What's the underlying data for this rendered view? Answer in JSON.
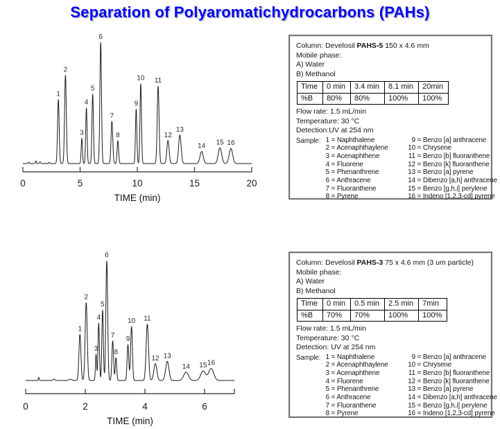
{
  "title": "Separation of Polyaromatichydrocarbons (PAHs)",
  "title_color": "#0404f0",
  "chart_data": [
    {
      "type": "line",
      "title": "Develosil PAHS-5 chromatogram",
      "xlabel": "TIME (min)",
      "ylabel": "",
      "xlim": [
        0,
        20
      ],
      "x_ticks": [
        0,
        5,
        10,
        15,
        20
      ],
      "grid": false,
      "legend": "none",
      "peaks": [
        {
          "label": "1",
          "t": 3.1,
          "h": 0.53,
          "w": 0.07
        },
        {
          "label": "2",
          "t": 3.72,
          "h": 0.73,
          "w": 0.075
        },
        {
          "label": "3",
          "t": 5.15,
          "h": 0.21,
          "w": 0.055
        },
        {
          "label": "4",
          "t": 5.55,
          "h": 0.46,
          "w": 0.06
        },
        {
          "label": "5",
          "t": 6.1,
          "h": 0.575,
          "w": 0.065
        },
        {
          "label": "6",
          "t": 6.8,
          "h": 1.0,
          "w": 0.07
        },
        {
          "label": "7",
          "t": 7.78,
          "h": 0.35,
          "w": 0.075
        },
        {
          "label": "8",
          "t": 8.3,
          "h": 0.19,
          "w": 0.065
        },
        {
          "label": "9",
          "t": 9.9,
          "h": 0.45,
          "w": 0.06
        },
        {
          "label": "10",
          "t": 10.3,
          "h": 0.66,
          "w": 0.065
        },
        {
          "label": "11",
          "t": 11.82,
          "h": 0.64,
          "w": 0.08
        },
        {
          "label": "12",
          "t": 12.68,
          "h": 0.19,
          "w": 0.1
        },
        {
          "label": "13",
          "t": 13.72,
          "h": 0.235,
          "w": 0.11
        },
        {
          "label": "14",
          "t": 15.62,
          "h": 0.1,
          "w": 0.14
        },
        {
          "label": "15",
          "t": 17.22,
          "h": 0.13,
          "w": 0.15
        },
        {
          "label": "16",
          "t": 18.18,
          "h": 0.125,
          "w": 0.15
        }
      ],
      "noise": [
        {
          "t": 0.5,
          "h": 0.012,
          "w": 0.05
        },
        {
          "t": 1.15,
          "h": 0.022,
          "w": 0.04
        },
        {
          "t": 1.5,
          "h": 0.014,
          "w": 0.06
        },
        {
          "t": 2.3,
          "h": 0.01,
          "w": 0.05
        }
      ]
    },
    {
      "type": "line",
      "title": "Develosil PAHS-3 chromatogram",
      "xlabel": "TIME (min)",
      "ylabel": "",
      "xlim": [
        0,
        7
      ],
      "x_ticks": [
        0,
        2,
        4,
        6
      ],
      "grid": false,
      "legend": "none",
      "peaks": [
        {
          "label": "1",
          "t": 1.82,
          "h": 0.385,
          "w": 0.033
        },
        {
          "label": "2",
          "t": 2.03,
          "h": 0.65,
          "w": 0.035
        },
        {
          "label": "3",
          "t": 2.36,
          "h": 0.22,
          "w": 0.02
        },
        {
          "label": "4",
          "t": 2.45,
          "h": 0.48,
          "w": 0.024
        },
        {
          "label": "5",
          "t": 2.58,
          "h": 0.59,
          "w": 0.025
        },
        {
          "label": "6",
          "t": 2.72,
          "h": 1.0,
          "w": 0.03
        },
        {
          "label": "7",
          "t": 2.92,
          "h": 0.33,
          "w": 0.028
        },
        {
          "label": "8",
          "t": 3.03,
          "h": 0.19,
          "w": 0.024
        },
        {
          "label": "9",
          "t": 3.43,
          "h": 0.3,
          "w": 0.028
        },
        {
          "label": "10",
          "t": 3.55,
          "h": 0.45,
          "w": 0.03
        },
        {
          "label": "11",
          "t": 4.08,
          "h": 0.47,
          "w": 0.04
        },
        {
          "label": "12",
          "t": 4.35,
          "h": 0.14,
          "w": 0.05
        },
        {
          "label": "13",
          "t": 4.75,
          "h": 0.16,
          "w": 0.055
        },
        {
          "label": "14",
          "t": 5.38,
          "h": 0.07,
          "w": 0.08
        },
        {
          "label": "15",
          "t": 5.95,
          "h": 0.08,
          "w": 0.08
        },
        {
          "label": "16",
          "t": 6.22,
          "h": 0.1,
          "w": 0.085
        }
      ],
      "noise": [
        {
          "t": 0.44,
          "h": 0.025,
          "w": 0.015
        },
        {
          "t": 0.95,
          "h": 0.012,
          "w": 0.03
        },
        {
          "t": 1.5,
          "h": 0.01,
          "w": 0.05
        }
      ]
    }
  ],
  "info_boxes": [
    {
      "column_line": {
        "prefix": "Column: Develosil ",
        "bold": "PAHS-5",
        "suffix": " 150 x 4.6 mm"
      },
      "mobile_phase": "Mobile phase:",
      "phase_a": "A) Water",
      "phase_b": "B) Methanol",
      "gradient_table": {
        "header": [
          "Time",
          "0 min",
          "3.4 min",
          "8.1 min",
          "20min"
        ],
        "row": [
          "%B",
          "80%",
          "80%",
          "100%",
          "100%"
        ]
      },
      "flow_rate": "Flow rate: 1.5 mL/min",
      "temperature": "Temperature: 30 °C",
      "detection": "Detection:UV at 254 nm",
      "sample_label": "Sample:",
      "samples_left": [
        {
          "n": "1",
          "name": "Naphthalene"
        },
        {
          "n": "2",
          "name": "Acenaphthaylene"
        },
        {
          "n": "3",
          "name": "Acenaphthene"
        },
        {
          "n": "4",
          "name": "Fluorene"
        },
        {
          "n": "5",
          "name": "Phenanthrene"
        },
        {
          "n": "6",
          "name": "Anthracene"
        },
        {
          "n": "7",
          "name": "Fluoranthene"
        },
        {
          "n": "8",
          "name": "Pyrene"
        }
      ],
      "samples_right": [
        {
          "n": "9",
          "name": "Benzo [a] anthracene"
        },
        {
          "n": "10",
          "name": "Chrysene"
        },
        {
          "n": "11",
          "name": "Benzo [b] fluoranthene"
        },
        {
          "n": "12",
          "name": "Benzo [k] fluoranthene"
        },
        {
          "n": "13",
          "name": "Benzo [a] pyrene"
        },
        {
          "n": "14",
          "name": "Dibenzo [a,h] anthracene"
        },
        {
          "n": "15",
          "name": "Benzo [g,h,i] perylene"
        },
        {
          "n": "16",
          "name": "Indeno [1,2,3-cd] pyrene"
        }
      ]
    },
    {
      "column_line": {
        "prefix": "Column: Develosil ",
        "bold": "PAHS-3",
        "suffix": " 75 x 4.6 mm (3 um particle)"
      },
      "mobile_phase": "Mobile phase:",
      "phase_a": "A) Water",
      "phase_b": "B) Methanol",
      "gradient_table": {
        "header": [
          "Time",
          "0 min",
          "0.5 min",
          "2.5 min",
          "7min"
        ],
        "row": [
          "%B",
          "70%",
          "70%",
          "100%",
          "100%"
        ]
      },
      "flow_rate": "Flow rate: 1.5 mL/min",
      "temperature": "Temperature: 30 °C",
      "detection": "Detection: UV at 254 nm",
      "sample_label": "Sample:",
      "samples_left": [
        {
          "n": "1",
          "name": "Naphthalene"
        },
        {
          "n": "2",
          "name": "Acenaphthaylene"
        },
        {
          "n": "3",
          "name": "Acenaphthene"
        },
        {
          "n": "4",
          "name": "Fluorene"
        },
        {
          "n": "5",
          "name": "Phenanthrene"
        },
        {
          "n": "6",
          "name": "Anthracene"
        },
        {
          "n": "7",
          "name": "Fluoranthene"
        },
        {
          "n": "8",
          "name": "Pyrene"
        }
      ],
      "samples_right": [
        {
          "n": "9",
          "name": "Benzo [a] anthracene"
        },
        {
          "n": "10",
          "name": "Chrysene"
        },
        {
          "n": "11",
          "name": "Benzo [b] fluoranthene"
        },
        {
          "n": "12",
          "name": "Benzo [k] fluoranthene"
        },
        {
          "n": "13",
          "name": "Benzo [a] pyrene"
        },
        {
          "n": "14",
          "name": "Dibenzo [a,h] anthracene"
        },
        {
          "n": "15",
          "name": "Benzo [g,h,i] perylene"
        },
        {
          "n": "16",
          "name": "Indeno [1,2,3-cd] pyrene"
        }
      ]
    }
  ]
}
